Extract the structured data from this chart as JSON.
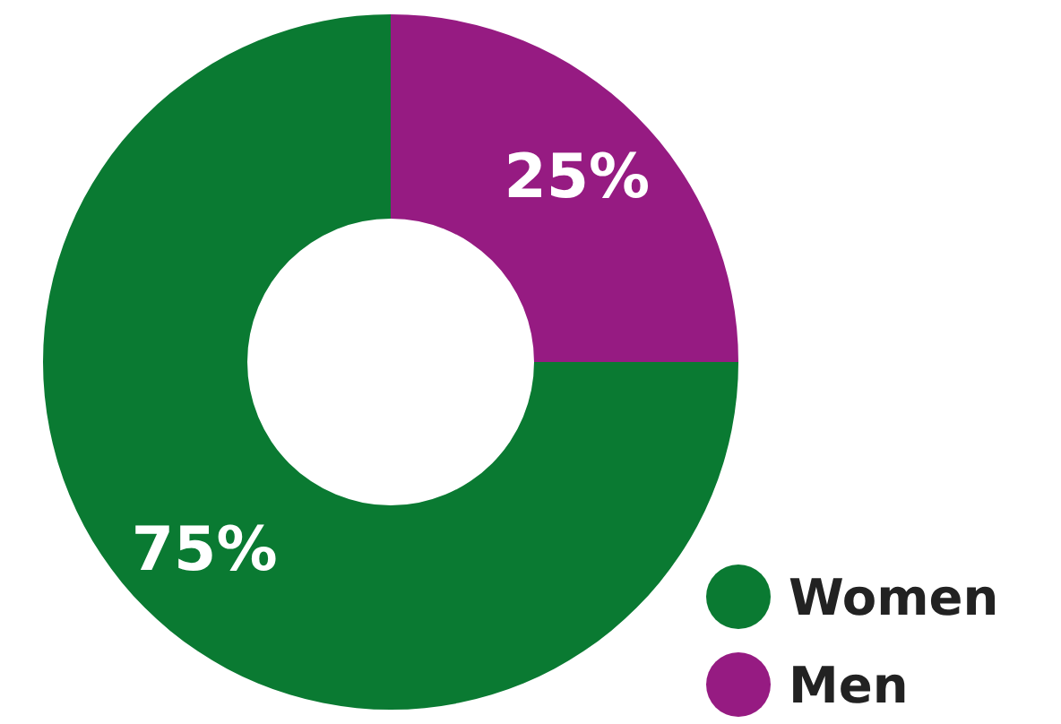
{
  "chart_data": {
    "type": "donut",
    "categories": [
      "Women",
      "Men"
    ],
    "values": [
      75,
      25
    ],
    "colors": [
      "#0a7a32",
      "#961b82"
    ],
    "value_labels": [
      "75%",
      "25%"
    ],
    "legend": "bottom right"
  }
}
